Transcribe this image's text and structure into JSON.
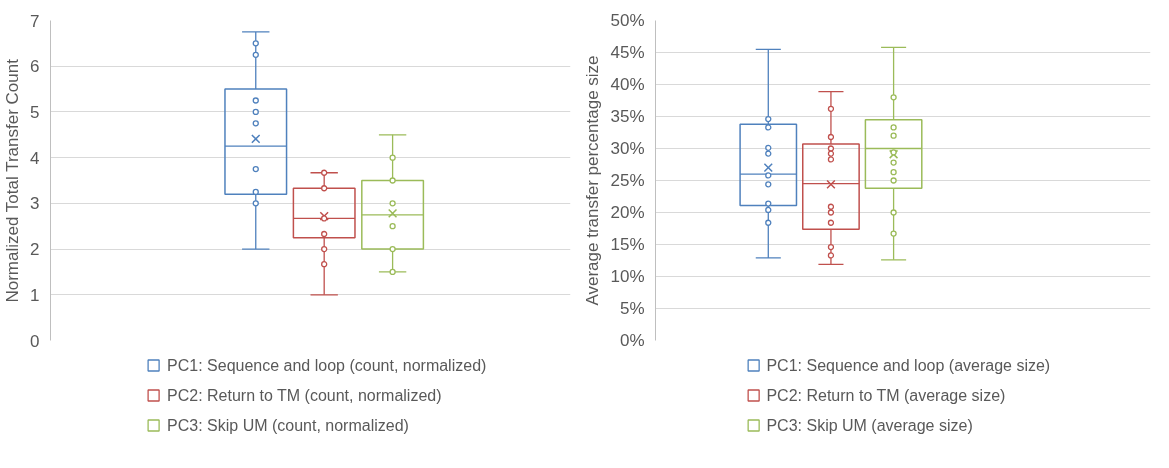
{
  "chart_data": [
    {
      "type": "box",
      "ylabel": "Normalized Total Transfer Count",
      "categories": [
        null
      ],
      "ylim": [
        0,
        7
      ],
      "yticks": [
        0,
        1,
        2,
        3,
        4,
        5,
        6,
        7
      ],
      "grid": "y",
      "legend": "bottom",
      "marker": "circle",
      "series": [
        {
          "name": "PC1: Sequence and loop (count, normalized)",
          "color": "#4f81bd",
          "boxes": [
            {
              "low": 2.0,
              "q1": 3.2,
              "median": 4.25,
              "q3": 5.5,
              "high": 6.75,
              "mean": 4.41,
              "outliers": [
                6.5,
                6.25,
                5.25,
                5.0,
                4.75,
                3.75,
                3.25,
                3.0
              ]
            }
          ]
        },
        {
          "name": "PC2: Return to TM (count, normalized)",
          "color": "#c0504d",
          "boxes": [
            {
              "low": 1.0,
              "q1": 2.25,
              "median": 2.67,
              "q3": 3.33,
              "high": 3.67,
              "mean": 2.72,
              "outliers": [
                3.67,
                3.33,
                2.67,
                2.33,
                2.0,
                1.67
              ]
            }
          ]
        },
        {
          "name": "PC3: Skip UM (count, normalized)",
          "color": "#9bbb59",
          "boxes": [
            {
              "low": 1.5,
              "q1": 2.0,
              "median": 2.75,
              "q3": 3.5,
              "high": 4.5,
              "mean": 2.78,
              "outliers": [
                4.0,
                3.5,
                3.0,
                2.5,
                2.0,
                1.5
              ]
            }
          ]
        }
      ]
    },
    {
      "type": "box",
      "ylabel": "Average transfer percentage size",
      "categories": [
        null
      ],
      "ylim": [
        0,
        50
      ],
      "yticks": [
        {
          "value": 0,
          "label": "0%"
        },
        {
          "value": 5,
          "label": "5%"
        },
        {
          "value": 10,
          "label": "10%"
        },
        {
          "value": 15,
          "label": "15%"
        },
        {
          "value": 20,
          "label": "20%"
        },
        {
          "value": 25,
          "label": "25%"
        },
        {
          "value": 30,
          "label": "30%"
        },
        {
          "value": 35,
          "label": "35%"
        },
        {
          "value": 40,
          "label": "40%"
        },
        {
          "value": 45,
          "label": "45%"
        },
        {
          "value": 50,
          "label": "50%"
        }
      ],
      "grid": "y",
      "legend": "bottom",
      "marker": "circle",
      "series": [
        {
          "name": "PC1: Sequence and loop (average size)",
          "color": "#4f81bd",
          "boxes": [
            {
              "low": 12.9,
              "q1": 21.1,
              "median": 26.0,
              "q3": 33.8,
              "high": 45.5,
              "mean": 27.0,
              "outliers": [
                34.6,
                33.3,
                30.1,
                29.2,
                25.8,
                24.4,
                21.4,
                20.4,
                18.4
              ]
            }
          ]
        },
        {
          "name": "PC2: Return to TM (average size)",
          "color": "#c0504d",
          "boxes": [
            {
              "low": 11.9,
              "q1": 17.4,
              "median": 24.5,
              "q3": 30.7,
              "high": 38.9,
              "mean": 24.4,
              "outliers": [
                36.2,
                31.8,
                30.0,
                29.2,
                28.3,
                20.9,
                20.0,
                18.4,
                14.6,
                13.3
              ]
            }
          ]
        },
        {
          "name": "PC3: Skip UM (average size)",
          "color": "#9bbb59",
          "boxes": [
            {
              "low": 12.6,
              "q1": 23.8,
              "median": 30.0,
              "q3": 34.5,
              "high": 45.8,
              "mean": 29.1,
              "outliers": [
                38.0,
                33.3,
                32.0,
                29.4,
                27.8,
                26.3,
                25.0,
                20.0,
                16.7
              ]
            }
          ]
        }
      ]
    }
  ]
}
